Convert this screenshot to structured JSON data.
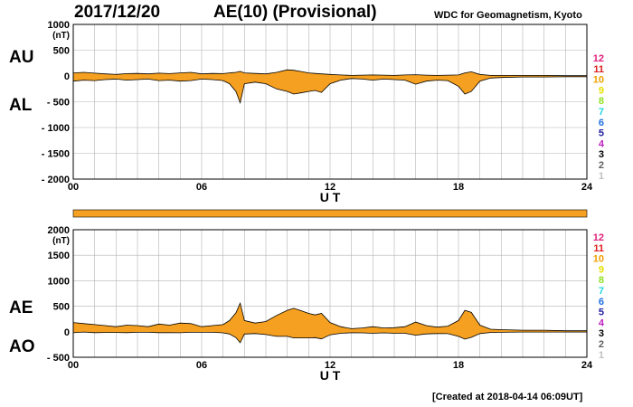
{
  "header": {
    "date": "2017/12/20",
    "title": "AE(10) (Provisional)",
    "source": "WDC for Geomagnetism, Kyoto"
  },
  "footer": {
    "created": "[Created at 2018-04-14 06:09UT]"
  },
  "colors": {
    "fill": "#f5a020",
    "line": "#000000",
    "grid": "#b4b4b4"
  },
  "station_scale": {
    "labels": [
      "12",
      "11",
      "10",
      "9",
      "8",
      "7",
      "6",
      "5",
      "4",
      "3",
      "2",
      "1"
    ],
    "colors": [
      "#e0207a",
      "#e02020",
      "#f0a000",
      "#e8e000",
      "#90e020",
      "#20d8e0",
      "#2070e0",
      "#2020a0",
      "#c020c0",
      "#000000",
      "#606060",
      "#c0c0c0"
    ]
  },
  "chart_data": [
    {
      "type": "area",
      "id": "au-al",
      "series_labels": [
        "AU",
        "AL"
      ],
      "unit": "(nT)",
      "xlabel": "U T",
      "xlim": [
        0,
        24
      ],
      "xticks": [
        "00",
        "06",
        "12",
        "18",
        "24"
      ],
      "ylim": [
        -2000,
        1000
      ],
      "yticks": [
        "1000",
        "500",
        "0",
        "- 500",
        "- 1000",
        "- 1500",
        "- 2000"
      ],
      "series": [
        {
          "name": "AU",
          "x": [
            0,
            0.5,
            1,
            1.5,
            2,
            2.5,
            3,
            3.5,
            4,
            4.5,
            5,
            5.5,
            6,
            6.5,
            7,
            7.3,
            7.6,
            7.8,
            8,
            8.5,
            9,
            9.5,
            10,
            10.3,
            10.6,
            11,
            11.3,
            11.6,
            12,
            12.5,
            13,
            13.5,
            14,
            14.5,
            15,
            15.5,
            16,
            16.5,
            17,
            17.5,
            18,
            18.3,
            18.6,
            19,
            19.5,
            20,
            21,
            22,
            23,
            24
          ],
          "values": [
            60,
            70,
            55,
            40,
            30,
            45,
            50,
            40,
            55,
            45,
            60,
            70,
            40,
            50,
            45,
            60,
            70,
            90,
            60,
            50,
            40,
            70,
            120,
            110,
            90,
            60,
            50,
            40,
            30,
            20,
            10,
            15,
            20,
            15,
            10,
            20,
            25,
            15,
            10,
            15,
            20,
            60,
            80,
            30,
            10,
            10,
            10,
            10,
            5,
            5
          ]
        },
        {
          "name": "AL",
          "x": [
            0,
            0.5,
            1,
            1.5,
            2,
            2.5,
            3,
            3.5,
            4,
            4.5,
            5,
            5.5,
            6,
            6.5,
            7,
            7.3,
            7.6,
            7.8,
            8,
            8.5,
            9,
            9.5,
            10,
            10.3,
            10.6,
            11,
            11.3,
            11.6,
            12,
            12.5,
            13,
            13.5,
            14,
            14.5,
            15,
            15.5,
            16,
            16.5,
            17,
            17.5,
            18,
            18.3,
            18.6,
            19,
            19.5,
            20,
            21,
            22,
            23,
            24
          ],
          "values": [
            -100,
            -80,
            -90,
            -70,
            -60,
            -80,
            -70,
            -60,
            -90,
            -80,
            -100,
            -90,
            -60,
            -70,
            -90,
            -150,
            -300,
            -520,
            -150,
            -120,
            -150,
            -250,
            -300,
            -350,
            -330,
            -300,
            -280,
            -320,
            -150,
            -80,
            -50,
            -60,
            -80,
            -60,
            -70,
            -80,
            -160,
            -100,
            -80,
            -90,
            -200,
            -350,
            -300,
            -100,
            -40,
            -30,
            -20,
            -20,
            -15,
            -15
          ]
        }
      ]
    },
    {
      "type": "area",
      "id": "ae-ao",
      "series_labels": [
        "AE",
        "AO"
      ],
      "unit": "(nT)",
      "xlabel": "U T",
      "xlim": [
        0,
        24
      ],
      "xticks": [
        "00",
        "06",
        "12",
        "18",
        "24"
      ],
      "ylim": [
        -500,
        2000
      ],
      "yticks": [
        "2000",
        "1500",
        "1000",
        "500",
        "0",
        "- 500"
      ],
      "series": [
        {
          "name": "AE",
          "x": [
            0,
            0.5,
            1,
            1.5,
            2,
            2.5,
            3,
            3.5,
            4,
            4.5,
            5,
            5.5,
            6,
            6.5,
            7,
            7.3,
            7.6,
            7.8,
            8,
            8.5,
            9,
            9.5,
            10,
            10.3,
            10.6,
            11,
            11.3,
            11.6,
            12,
            12.5,
            13,
            13.5,
            14,
            14.5,
            15,
            15.5,
            16,
            16.5,
            17,
            17.5,
            18,
            18.3,
            18.6,
            19,
            19.5,
            20,
            21,
            22,
            23,
            24
          ],
          "values": [
            180,
            160,
            140,
            120,
            100,
            130,
            120,
            100,
            150,
            130,
            170,
            160,
            100,
            120,
            140,
            220,
            370,
            560,
            220,
            170,
            200,
            320,
            420,
            460,
            420,
            360,
            330,
            360,
            180,
            100,
            60,
            75,
            100,
            75,
            80,
            100,
            190,
            120,
            90,
            110,
            220,
            420,
            380,
            130,
            50,
            40,
            30,
            30,
            20,
            20
          ]
        },
        {
          "name": "AO",
          "x": [
            0,
            0.5,
            1,
            1.5,
            2,
            2.5,
            3,
            3.5,
            4,
            4.5,
            5,
            5.5,
            6,
            6.5,
            7,
            7.3,
            7.6,
            7.8,
            8,
            8.5,
            9,
            9.5,
            10,
            10.3,
            10.6,
            11,
            11.3,
            11.6,
            12,
            12.5,
            13,
            13.5,
            14,
            14.5,
            15,
            15.5,
            16,
            16.5,
            17,
            17.5,
            18,
            18.3,
            18.6,
            19,
            19.5,
            20,
            21,
            22,
            23,
            24
          ],
          "values": [
            -20,
            -5,
            -18,
            -15,
            -15,
            -18,
            -10,
            -10,
            -18,
            -18,
            -20,
            -10,
            -10,
            -10,
            -22,
            -45,
            -115,
            -215,
            -45,
            -35,
            -55,
            -90,
            -90,
            -120,
            -120,
            -120,
            -115,
            -140,
            -60,
            -30,
            -20,
            -22,
            -30,
            -22,
            -30,
            -30,
            -68,
            -42,
            -35,
            -38,
            -90,
            -145,
            -110,
            -35,
            -15,
            -10,
            -5,
            -5,
            -5,
            -5
          ]
        }
      ]
    }
  ]
}
